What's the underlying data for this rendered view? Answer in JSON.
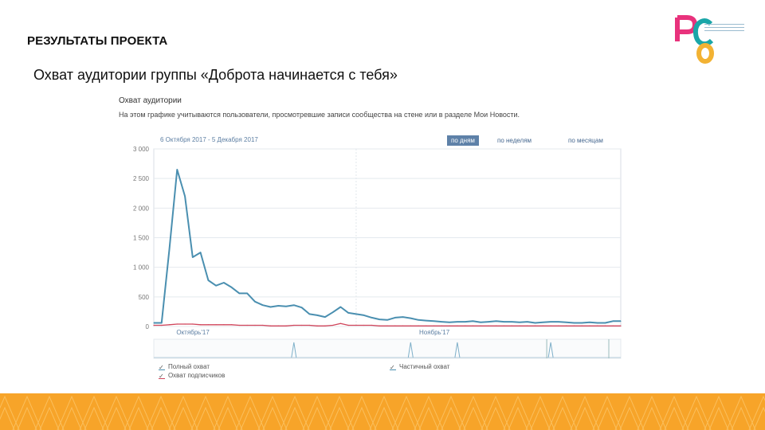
{
  "slide": {
    "heading": "РЕЗУЛЬТАТЫ ПРОЕКТА",
    "subtitle": "Охват аудитории группы «Доброта начинается с тебя»"
  },
  "logo": {
    "letters": [
      "Р",
      "С",
      "О"
    ],
    "colors": {
      "r": "#e8327c",
      "s": "#1aa6a8",
      "o": "#f2b233"
    }
  },
  "panel": {
    "title": "Охват аудитории",
    "description": "На этом графике учитываются пользователи, просмотревшие записи сообщества на стене или в разделе Мои Новости.",
    "date_range": "6 Октября 2017 - 5 Декабря 2017",
    "modes": [
      {
        "label": "по дням",
        "active": true
      },
      {
        "label": "по неделям",
        "active": false
      },
      {
        "label": "по месяцам",
        "active": false
      }
    ]
  },
  "colors": {
    "full_reach": "#4a8fb0",
    "subscriber_reach": "#d0445a",
    "grid": "#e4e9ee",
    "band": "#f7a429"
  },
  "chart_data": {
    "type": "line",
    "ylim": [
      0,
      3000
    ],
    "yticks": [
      "3 000",
      "2 500",
      "2 000",
      "1 500",
      "1 000",
      "500",
      "0"
    ],
    "ytick_values": [
      3000,
      2500,
      2000,
      1500,
      1000,
      500,
      0
    ],
    "x_labels": [
      "Октябрь'17",
      "Ноябрь'17"
    ],
    "grid": true,
    "legend_position": "bottom",
    "series": [
      {
        "name": "Полный охват",
        "color": "#4a8fb0",
        "values": [
          60,
          60,
          1300,
          2650,
          2200,
          1170,
          1250,
          780,
          690,
          740,
          660,
          560,
          560,
          420,
          360,
          330,
          350,
          340,
          360,
          320,
          210,
          190,
          160,
          240,
          330,
          230,
          210,
          190,
          150,
          120,
          110,
          150,
          160,
          140,
          110,
          100,
          90,
          80,
          70,
          80,
          80,
          90,
          70,
          80,
          90,
          80,
          80,
          70,
          80,
          60,
          70,
          80,
          80,
          70,
          60,
          60,
          70,
          60,
          60,
          90,
          90
        ]
      },
      {
        "name": "Охват подписчиков",
        "color": "#d0445a",
        "values": [
          20,
          20,
          30,
          40,
          40,
          40,
          30,
          30,
          30,
          30,
          30,
          20,
          20,
          20,
          20,
          10,
          10,
          10,
          20,
          20,
          20,
          10,
          10,
          20,
          50,
          20,
          20,
          20,
          20,
          10,
          10,
          10,
          10,
          10,
          10,
          10,
          10,
          10,
          10,
          10,
          10,
          10,
          10,
          10,
          10,
          10,
          10,
          10,
          10,
          10,
          10,
          10,
          10,
          10,
          10,
          10,
          10,
          10,
          10,
          10,
          10
        ]
      }
    ],
    "navigator_peaks": [
      0.3,
      0.55,
      0.65,
      0.85
    ]
  },
  "legend": {
    "full_reach": "Полный охват",
    "subscriber_reach": "Охват подписчиков",
    "partial_reach": "Частичный охват"
  }
}
